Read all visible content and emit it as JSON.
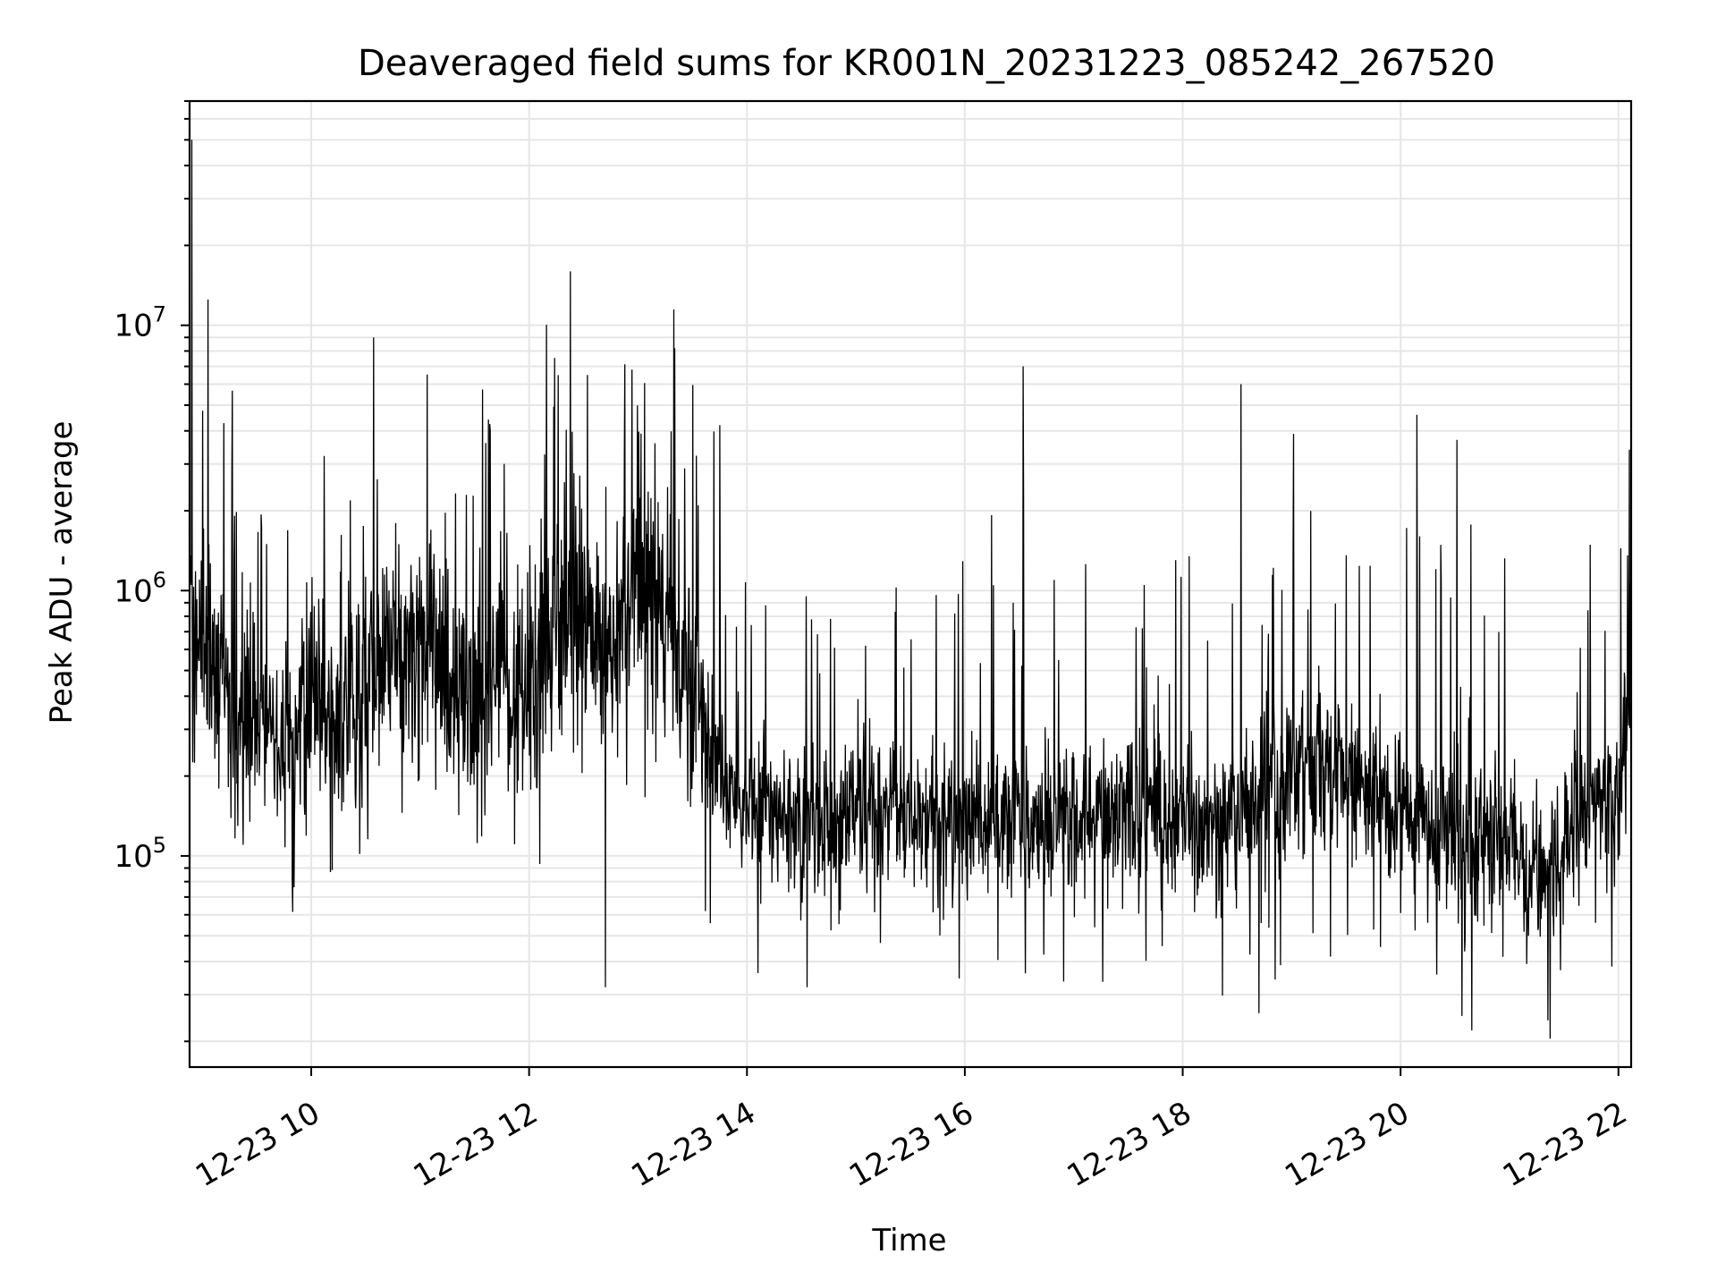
{
  "chart_data": {
    "type": "line",
    "title": "Deaveraged field sums for KR001N_20231223_085242_267520",
    "xlabel": "Time",
    "ylabel": "Peak ADU - average",
    "yscale": "log",
    "ylim": [
      16000,
      70000000
    ],
    "xlim": [
      "12-23 08:53",
      "12-23 22:07"
    ],
    "grid": true,
    "line_color": "#000000",
    "grid_color": "#e6e6e6",
    "x_ticks": [
      "12-23 10",
      "12-23 12",
      "12-23 14",
      "12-23 16",
      "12-23 18",
      "12-23 20",
      "12-23 22"
    ],
    "y_ticks": [
      {
        "value": 100000,
        "base": "10",
        "exp": "5"
      },
      {
        "value": 1000000,
        "base": "10",
        "exp": "6"
      },
      {
        "value": 10000000,
        "base": "10",
        "exp": "7"
      }
    ],
    "series": [
      {
        "x": [
          "12-23 08:53",
          "12-23 09:00",
          "12-23 09:07",
          "12-23 09:15",
          "12-23 09:30",
          "12-23 09:45",
          "12-23 10:00",
          "12-23 10:15",
          "12-23 10:30",
          "12-23 10:45",
          "12-23 11:00",
          "12-23 11:15",
          "12-23 11:30",
          "12-23 11:45",
          "12-23 12:00",
          "12-23 12:15",
          "12-23 12:30",
          "12-23 12:45",
          "12-23 13:00",
          "12-23 13:15",
          "12-23 13:30",
          "12-23 13:45",
          "12-23 14:00",
          "12-23 14:15",
          "12-23 14:30",
          "12-23 15:00",
          "12-23 15:30",
          "12-23 16:00",
          "12-23 16:30",
          "12-23 17:00",
          "12-23 17:30",
          "12-23 18:00",
          "12-23 18:15",
          "12-23 18:30",
          "12-23 18:45",
          "12-23 19:00",
          "12-23 19:15",
          "12-23 19:30",
          "12-23 19:45",
          "12-23 20:00",
          "12-23 20:15",
          "12-23 20:30",
          "12-23 20:45",
          "12-23 21:00",
          "12-23 21:15",
          "12-23 21:30",
          "12-23 21:45",
          "12-23 22:00",
          "12-23 22:07"
        ],
        "y": [
          900000,
          550000,
          500000,
          400000,
          300000,
          250000,
          400000,
          350000,
          500000,
          600000,
          700000,
          500000,
          350000,
          500000,
          400000,
          700000,
          900000,
          600000,
          1100000,
          700000,
          450000,
          200000,
          150000,
          140000,
          130000,
          150000,
          140000,
          135000,
          135000,
          135000,
          150000,
          140000,
          130000,
          140000,
          180000,
          200000,
          220000,
          200000,
          170000,
          150000,
          140000,
          110000,
          120000,
          120000,
          90000,
          100000,
          170000,
          160000,
          900000
        ]
      }
    ],
    "spikes": [
      {
        "x": "12-23 08:54",
        "y": 50000000
      },
      {
        "x": "12-23 09:03",
        "y": 12500000
      },
      {
        "x": "12-23 11:36",
        "y": 3600000
      },
      {
        "x": "12-23 12:32",
        "y": 6500000
      },
      {
        "x": "12-23 12:42",
        "y": 32000
      },
      {
        "x": "12-23 13:45",
        "y": 4200000
      },
      {
        "x": "12-23 16:32",
        "y": 7000000
      },
      {
        "x": "12-23 18:32",
        "y": 6000000
      },
      {
        "x": "12-23 19:01",
        "y": 3900000
      },
      {
        "x": "12-23 20:09",
        "y": 4600000
      },
      {
        "x": "12-23 20:31",
        "y": 3700000
      },
      {
        "x": "12-23 20:39",
        "y": 22000
      },
      {
        "x": "12-23 21:21",
        "y": 24000
      },
      {
        "x": "12-23 22:06",
        "y": 3400000
      }
    ]
  }
}
